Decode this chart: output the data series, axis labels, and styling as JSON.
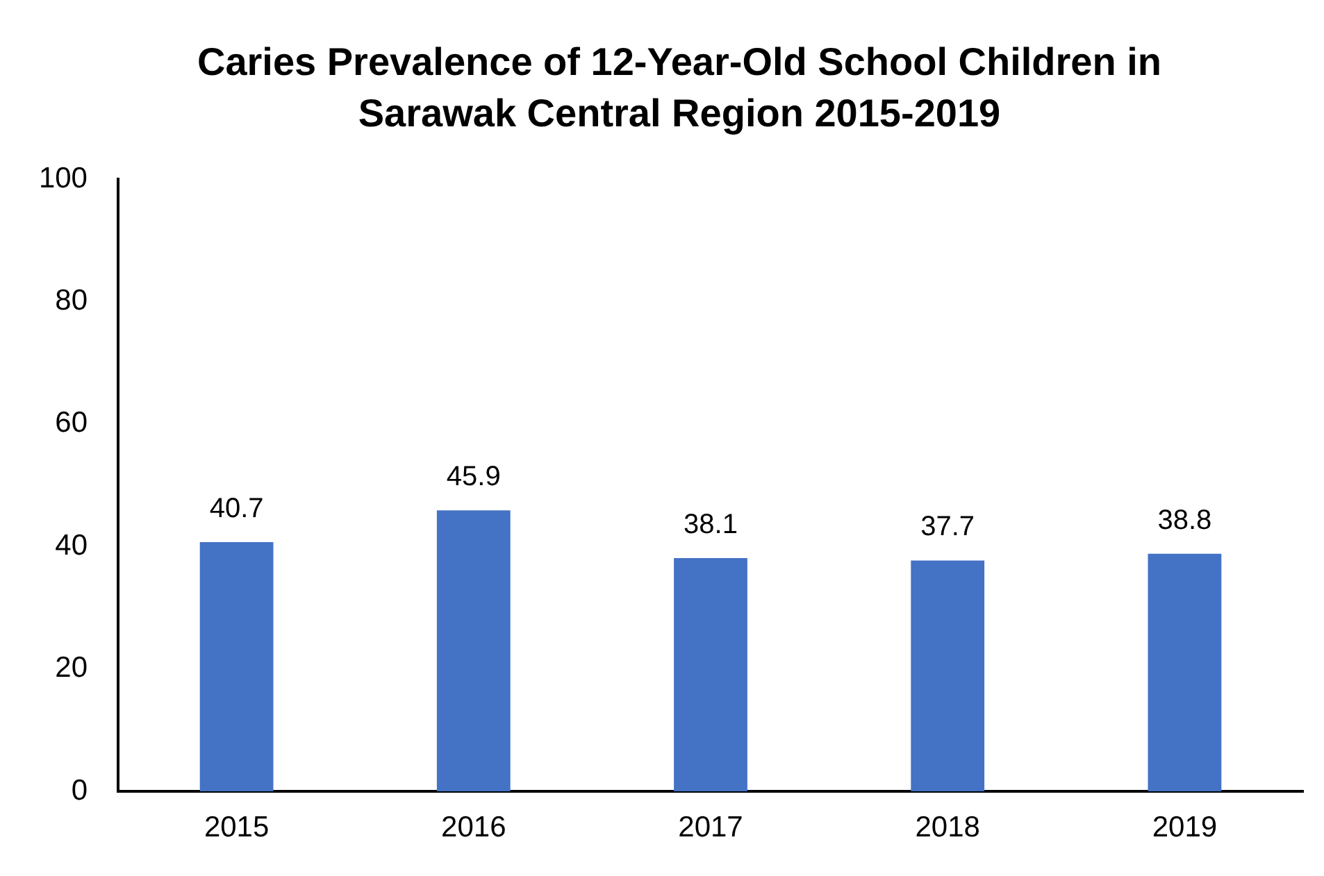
{
  "chart_data": {
    "type": "bar",
    "title": "Caries Prevalence of 12-Year-Old School Children in Sarawak Central Region 2015-2019",
    "categories": [
      "2015",
      "2016",
      "2017",
      "2018",
      "2019"
    ],
    "values": [
      40.7,
      45.9,
      38.1,
      37.7,
      38.8
    ],
    "color": "#4472c4",
    "ylim": [
      0,
      100
    ],
    "yticks": [
      0,
      20,
      40,
      60,
      80,
      100
    ],
    "data_labels": true
  }
}
